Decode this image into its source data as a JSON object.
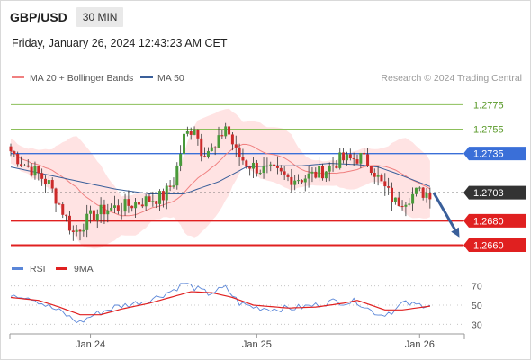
{
  "header": {
    "pair": "GBP/USD",
    "timeframe": "30 MIN",
    "datetime": "Friday, January 26, 2024 12:43:23 AM CET"
  },
  "credit": "Research © 2024 Trading Central",
  "colors": {
    "ma20": "#f08080",
    "ma50": "#3a5f9a",
    "band_fill": "#ffd9d9",
    "resistance": "#8cbf5a",
    "pivot": "#3a6fd8",
    "support": "#e02020",
    "current": "#333333",
    "candle_up": "#4a9a3a",
    "candle_down": "#cc2a2a",
    "rsi": "#5a86d8",
    "rsi_ma": "#e02020"
  },
  "chart_data": [
    {
      "type": "candlestick",
      "legend": [
        {
          "name": "MA 20 + Bollinger Bands",
          "color": "#f08080"
        },
        {
          "name": "MA 50",
          "color": "#3a5f9a"
        }
      ],
      "ylim": [
        1.2653,
        1.279
      ],
      "x_ticks": [
        {
          "label": "Jan 24",
          "index": 23
        },
        {
          "label": "Jan 25",
          "index": 71
        },
        {
          "label": "Jan 26",
          "index": 118
        }
      ],
      "levels": [
        {
          "label": "1.2775",
          "value": 1.2775,
          "kind": "resistance"
        },
        {
          "label": "1.2755",
          "value": 1.2755,
          "kind": "resistance"
        },
        {
          "label": "1.2735",
          "value": 1.2735,
          "kind": "pivot"
        },
        {
          "label": "1.2703",
          "value": 1.2703,
          "kind": "current"
        },
        {
          "label": "1.2680",
          "value": 1.268,
          "kind": "support"
        },
        {
          "label": "1.2660",
          "value": 1.266,
          "kind": "support"
        }
      ],
      "projection": {
        "from": 1.2703,
        "to": 1.2663
      },
      "close_anchors": [
        [
          0,
          1.2737
        ],
        [
          3,
          1.2728
        ],
        [
          8,
          1.2718
        ],
        [
          11,
          1.271
        ],
        [
          15,
          1.2688
        ],
        [
          18,
          1.267
        ],
        [
          20,
          1.2675
        ],
        [
          23,
          1.2683
        ],
        [
          27,
          1.2689
        ],
        [
          33,
          1.2692
        ],
        [
          38,
          1.2696
        ],
        [
          44,
          1.27
        ],
        [
          47,
          1.2712
        ],
        [
          50,
          1.2748
        ],
        [
          53,
          1.2758
        ],
        [
          55,
          1.2738
        ],
        [
          59,
          1.2738
        ],
        [
          62,
          1.2758
        ],
        [
          65,
          1.2736
        ],
        [
          68,
          1.2727
        ],
        [
          72,
          1.2722
        ],
        [
          76,
          1.272
        ],
        [
          80,
          1.2715
        ],
        [
          84,
          1.2715
        ],
        [
          88,
          1.2718
        ],
        [
          91,
          1.2722
        ],
        [
          95,
          1.273
        ],
        [
          98,
          1.273
        ],
        [
          101,
          1.2732
        ],
        [
          104,
          1.2725
        ],
        [
          107,
          1.271
        ],
        [
          111,
          1.2695
        ],
        [
          114,
          1.2698
        ],
        [
          117,
          1.2703
        ],
        [
          121,
          1.2703
        ]
      ],
      "ma50_anchors": [
        [
          0,
          1.2724
        ],
        [
          10,
          1.2718
        ],
        [
          20,
          1.2712
        ],
        [
          30,
          1.2706
        ],
        [
          40,
          1.2702
        ],
        [
          50,
          1.2702
        ],
        [
          60,
          1.2712
        ],
        [
          68,
          1.2724
        ],
        [
          76,
          1.2725
        ],
        [
          84,
          1.2725
        ],
        [
          92,
          1.2727
        ],
        [
          100,
          1.2726
        ],
        [
          106,
          1.2724
        ],
        [
          112,
          1.2718
        ],
        [
          121,
          1.2708
        ]
      ]
    },
    {
      "type": "line",
      "series": [
        {
          "name": "RSI"
        },
        {
          "name": "9MA"
        }
      ],
      "ylim": [
        20,
        80
      ],
      "yticks": [
        70,
        50,
        30
      ],
      "rsi_anchors": [
        [
          0,
          62
        ],
        [
          6,
          58
        ],
        [
          10,
          50
        ],
        [
          15,
          42
        ],
        [
          18,
          35
        ],
        [
          20,
          32
        ],
        [
          24,
          40
        ],
        [
          30,
          48
        ],
        [
          36,
          52
        ],
        [
          42,
          58
        ],
        [
          47,
          66
        ],
        [
          50,
          73
        ],
        [
          53,
          68
        ],
        [
          57,
          62
        ],
        [
          62,
          68
        ],
        [
          66,
          52
        ],
        [
          70,
          48
        ],
        [
          76,
          46
        ],
        [
          82,
          47
        ],
        [
          88,
          50
        ],
        [
          93,
          54
        ],
        [
          97,
          53
        ],
        [
          100,
          54
        ],
        [
          104,
          44
        ],
        [
          107,
          40
        ],
        [
          111,
          45
        ],
        [
          113,
          52
        ],
        [
          117,
          50
        ],
        [
          121,
          51
        ]
      ],
      "ma_anchors": [
        [
          0,
          58
        ],
        [
          8,
          55
        ],
        [
          14,
          48
        ],
        [
          20,
          40
        ],
        [
          26,
          40
        ],
        [
          32,
          46
        ],
        [
          40,
          52
        ],
        [
          46,
          58
        ],
        [
          52,
          64
        ],
        [
          58,
          63
        ],
        [
          64,
          58
        ],
        [
          70,
          50
        ],
        [
          80,
          47
        ],
        [
          88,
          48
        ],
        [
          96,
          52
        ],
        [
          100,
          55
        ],
        [
          104,
          50
        ],
        [
          108,
          45
        ],
        [
          113,
          45
        ],
        [
          121,
          49
        ]
      ]
    }
  ]
}
